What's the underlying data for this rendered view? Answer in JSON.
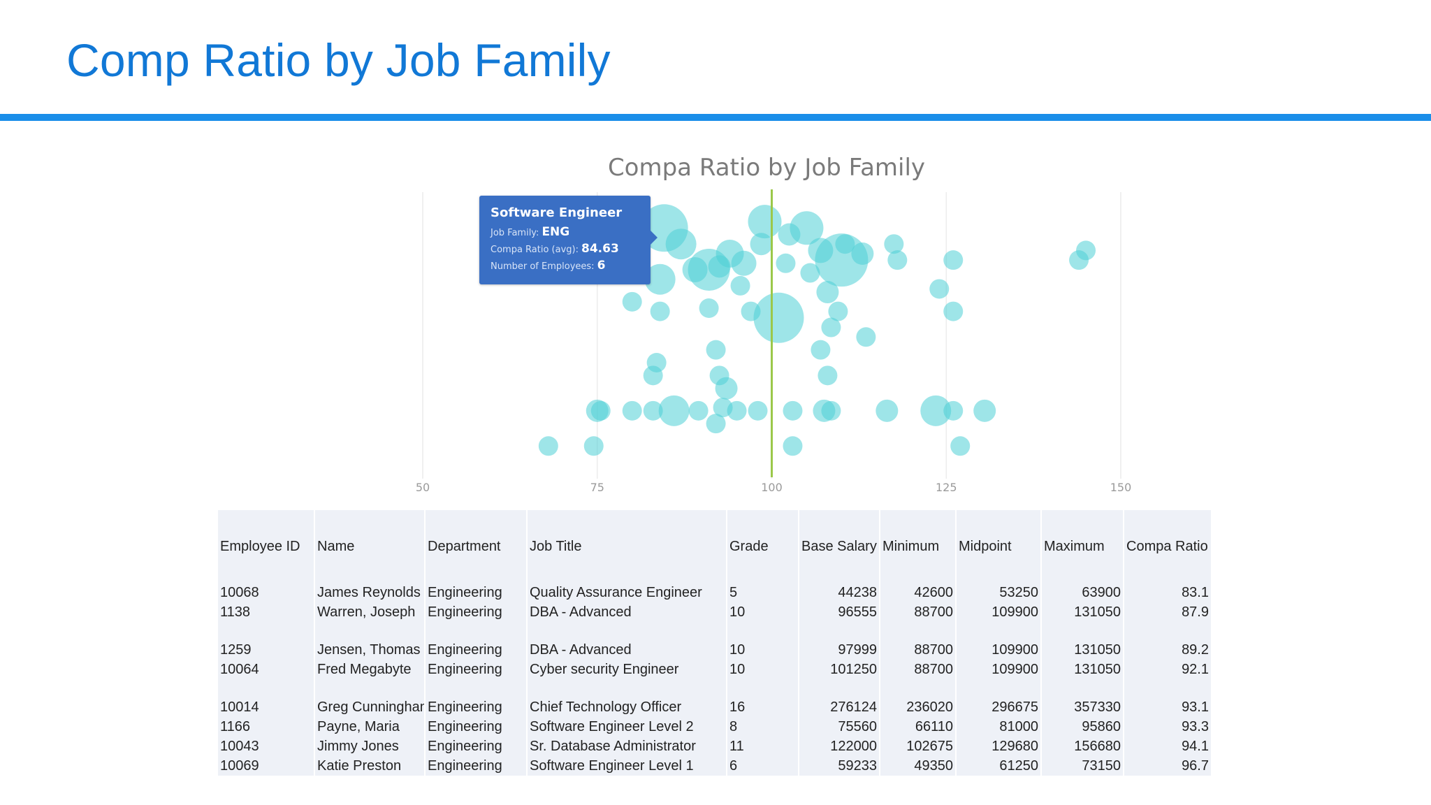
{
  "slide": {
    "title": "Comp Ratio by Job Family"
  },
  "colors": {
    "accent": "#1178d6",
    "rule": "#1a8ee9",
    "bubble": "#4fd0d6",
    "midline": "#9bc84a",
    "tooltip_bg": "#3a6fc4"
  },
  "chart_data": {
    "type": "scatter",
    "title": "Compa Ratio by Job Family",
    "xlabel": "",
    "ylabel": "",
    "xlim": [
      50,
      150
    ],
    "x_ticks": [
      "50",
      "75",
      "100",
      "125",
      "150"
    ],
    "reference_line_x": 100,
    "grid": "vertical",
    "points": [
      {
        "x": 84.6,
        "y": 9.1,
        "r": 34
      },
      {
        "x": 87,
        "y": 8.6,
        "r": 22
      },
      {
        "x": 91,
        "y": 7.8,
        "r": 30
      },
      {
        "x": 94,
        "y": 8.3,
        "r": 20
      },
      {
        "x": 96,
        "y": 8.0,
        "r": 18
      },
      {
        "x": 98.5,
        "y": 8.6,
        "r": 16
      },
      {
        "x": 81,
        "y": 8.7,
        "r": 16
      },
      {
        "x": 84,
        "y": 7.5,
        "r": 22
      },
      {
        "x": 89,
        "y": 7.8,
        "r": 18
      },
      {
        "x": 92.5,
        "y": 7.9,
        "r": 16
      },
      {
        "x": 95.5,
        "y": 7.3,
        "r": 14
      },
      {
        "x": 99,
        "y": 9.3,
        "r": 24
      },
      {
        "x": 102.5,
        "y": 8.9,
        "r": 16
      },
      {
        "x": 105,
        "y": 9.1,
        "r": 24
      },
      {
        "x": 107,
        "y": 8.4,
        "r": 18
      },
      {
        "x": 110,
        "y": 8.1,
        "r": 38
      },
      {
        "x": 113,
        "y": 8.3,
        "r": 16
      },
      {
        "x": 110.5,
        "y": 8.6,
        "r": 14
      },
      {
        "x": 117.5,
        "y": 8.6,
        "r": 14
      },
      {
        "x": 118,
        "y": 8.1,
        "r": 14
      },
      {
        "x": 126,
        "y": 8.1,
        "r": 14
      },
      {
        "x": 145,
        "y": 8.4,
        "r": 14
      },
      {
        "x": 144,
        "y": 8.1,
        "r": 14
      },
      {
        "x": 102,
        "y": 8.0,
        "r": 14
      },
      {
        "x": 105.5,
        "y": 7.7,
        "r": 14
      },
      {
        "x": 108,
        "y": 7.1,
        "r": 16
      },
      {
        "x": 124,
        "y": 7.2,
        "r": 14
      },
      {
        "x": 80,
        "y": 6.8,
        "r": 14
      },
      {
        "x": 84,
        "y": 6.5,
        "r": 14
      },
      {
        "x": 91,
        "y": 6.6,
        "r": 14
      },
      {
        "x": 97,
        "y": 6.5,
        "r": 14
      },
      {
        "x": 101,
        "y": 6.3,
        "r": 36
      },
      {
        "x": 109.5,
        "y": 6.5,
        "r": 14
      },
      {
        "x": 108.5,
        "y": 6.0,
        "r": 14
      },
      {
        "x": 113.5,
        "y": 5.7,
        "r": 14
      },
      {
        "x": 126,
        "y": 6.5,
        "r": 14
      },
      {
        "x": 92,
        "y": 5.3,
        "r": 14
      },
      {
        "x": 107,
        "y": 5.3,
        "r": 14
      },
      {
        "x": 83.5,
        "y": 4.9,
        "r": 14
      },
      {
        "x": 83,
        "y": 4.5,
        "r": 14
      },
      {
        "x": 92.5,
        "y": 4.5,
        "r": 14
      },
      {
        "x": 93.5,
        "y": 4.1,
        "r": 16
      },
      {
        "x": 108,
        "y": 4.5,
        "r": 14
      },
      {
        "x": 75,
        "y": 3.4,
        "r": 16
      },
      {
        "x": 75.5,
        "y": 3.4,
        "r": 14
      },
      {
        "x": 80,
        "y": 3.4,
        "r": 14
      },
      {
        "x": 83,
        "y": 3.4,
        "r": 14
      },
      {
        "x": 86,
        "y": 3.4,
        "r": 22
      },
      {
        "x": 89.5,
        "y": 3.4,
        "r": 14
      },
      {
        "x": 93,
        "y": 3.5,
        "r": 14
      },
      {
        "x": 95,
        "y": 3.4,
        "r": 14
      },
      {
        "x": 98,
        "y": 3.4,
        "r": 14
      },
      {
        "x": 92,
        "y": 3.0,
        "r": 14
      },
      {
        "x": 103,
        "y": 3.4,
        "r": 14
      },
      {
        "x": 107.5,
        "y": 3.4,
        "r": 16
      },
      {
        "x": 108.5,
        "y": 3.4,
        "r": 14
      },
      {
        "x": 116.5,
        "y": 3.4,
        "r": 16
      },
      {
        "x": 123.5,
        "y": 3.4,
        "r": 22
      },
      {
        "x": 126,
        "y": 3.4,
        "r": 14
      },
      {
        "x": 130.5,
        "y": 3.4,
        "r": 16
      },
      {
        "x": 68,
        "y": 2.3,
        "r": 14
      },
      {
        "x": 74.5,
        "y": 2.3,
        "r": 14
      },
      {
        "x": 103,
        "y": 2.3,
        "r": 14
      },
      {
        "x": 127,
        "y": 2.3,
        "r": 14
      }
    ]
  },
  "tooltip": {
    "title": "Software Engineer",
    "family_label": "Job Family:",
    "family_value": "ENG",
    "ratio_label": "Compa Ratio (avg):",
    "ratio_value": "84.63",
    "count_label": "Number of Employees:",
    "count_value": "6"
  },
  "table": {
    "headers": [
      "Employee ID",
      "Name",
      "Department",
      "Job Title",
      "Grade",
      "Base Salary",
      "Minimum",
      "Midpoint",
      "Maximum",
      "Compa Ratio"
    ],
    "rows": [
      [
        "10068",
        "James Reynolds",
        "Engineering",
        "Quality Assurance Engineer",
        "5",
        "44238",
        "42600",
        "53250",
        "63900",
        "83.1"
      ],
      [
        "1138",
        "Warren, Joseph",
        "Engineering",
        "DBA - Advanced",
        "10",
        "96555",
        "88700",
        "109900",
        "131050",
        "87.9"
      ],
      [
        "1259",
        "Jensen, Thomas",
        "Engineering",
        "DBA - Advanced",
        "10",
        "97999",
        "88700",
        "109900",
        "131050",
        "89.2"
      ],
      [
        "10064",
        "Fred Megabyte",
        "Engineering",
        "Cyber security Engineer",
        "10",
        "101250",
        "88700",
        "109900",
        "131050",
        "92.1"
      ],
      [
        "10014",
        "Greg Cunningham",
        "Engineering",
        "Chief Technology Officer",
        "16",
        "276124",
        "236020",
        "296675",
        "357330",
        "93.1"
      ],
      [
        "1166",
        "Payne, Maria",
        "Engineering",
        "Software Engineer Level 2",
        "8",
        "75560",
        "66110",
        "81000",
        "95860",
        "93.3"
      ],
      [
        "10043",
        "Jimmy Jones",
        "Engineering",
        "Sr. Database Administrator",
        "11",
        "122000",
        "102675",
        "129680",
        "156680",
        "94.1"
      ],
      [
        "10069",
        "Katie Preston",
        "Engineering",
        "Software Engineer Level 1",
        "6",
        "59233",
        "49350",
        "61250",
        "73150",
        "96.7"
      ]
    ]
  }
}
